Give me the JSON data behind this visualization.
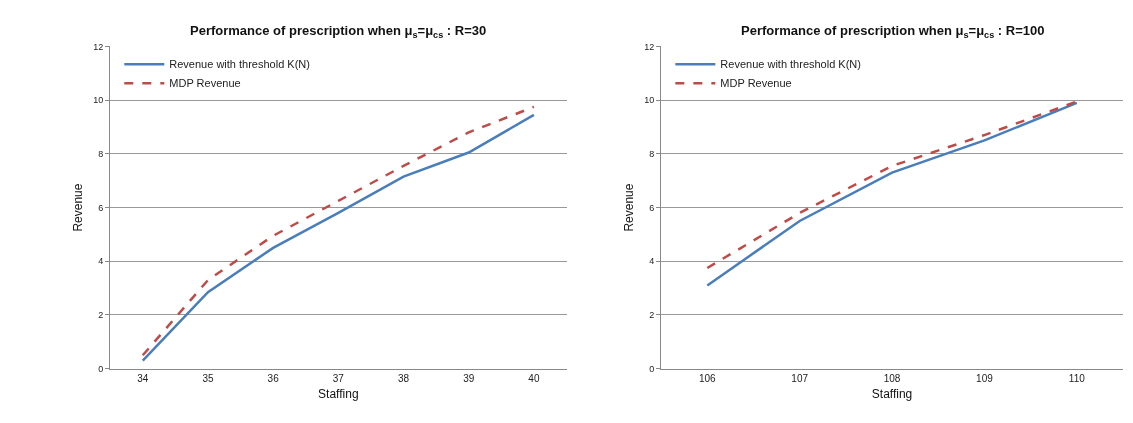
{
  "chart_data": [
    {
      "type": "line",
      "title": "Performance of prescription when μ$_{s}$=μ$_{cs}$ : R=30",
      "xlabel": "Staffing",
      "ylabel": "Revenue",
      "categories": [
        "34",
        "35",
        "36",
        "37",
        "38",
        "39",
        "40"
      ],
      "ylim": [
        0,
        12
      ],
      "yticks": [
        0,
        2,
        4,
        6,
        8,
        10,
        12
      ],
      "grid": "y",
      "legend": "top left",
      "marker": "none",
      "series": [
        {
          "name": "Revenue with threshold K(N)",
          "color": "#4a7ebb",
          "line_style": "solid",
          "values": [
            0.3,
            2.85,
            4.5,
            5.8,
            7.15,
            8.05,
            9.45
          ]
        },
        {
          "name": "MDP Revenue",
          "color": "#be4b48",
          "line_style": "dashed",
          "values": [
            0.5,
            3.3,
            4.95,
            6.25,
            7.55,
            8.8,
            9.75
          ]
        }
      ]
    },
    {
      "type": "line",
      "title": "Performance of prescription when μ$_{s}$=μ$_{cs}$ : R=100",
      "xlabel": "Staffing",
      "ylabel": "Revenue",
      "categories": [
        "106",
        "107",
        "108",
        "109",
        "110"
      ],
      "ylim": [
        0,
        12
      ],
      "yticks": [
        0,
        2,
        4,
        6,
        8,
        10,
        12
      ],
      "grid": "y",
      "legend": "top left",
      "marker": "none",
      "series": [
        {
          "name": "Revenue with threshold K(N)",
          "color": "#4a7ebb",
          "line_style": "solid",
          "values": [
            3.1,
            5.5,
            7.3,
            8.5,
            9.9
          ]
        },
        {
          "name": "MDP Revenue",
          "color": "#be4b48",
          "line_style": "dashed",
          "values": [
            3.75,
            5.8,
            7.55,
            8.7,
            9.95
          ]
        }
      ]
    }
  ]
}
